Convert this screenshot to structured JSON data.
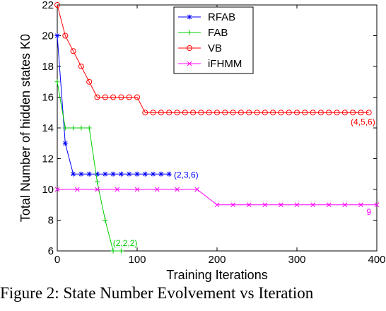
{
  "chart_data": {
    "type": "line",
    "title": "",
    "xlabel": "Training Iterations",
    "ylabel": "Total Number of hidden states K0",
    "xlim": [
      0,
      400
    ],
    "ylim": [
      6,
      22
    ],
    "xticks": [
      0,
      100,
      200,
      300,
      400
    ],
    "yticks": [
      6,
      8,
      10,
      12,
      14,
      16,
      18,
      20,
      22
    ],
    "grid": false,
    "legend_position": "top-center",
    "series": [
      {
        "name": "RFAB",
        "color": "#0000ff",
        "marker": "asterisk",
        "x": [
          0,
          10,
          20,
          30,
          40,
          50,
          60,
          70,
          80,
          90,
          100,
          110,
          120,
          130,
          140
        ],
        "y": [
          20,
          13,
          11,
          11,
          11,
          11,
          11,
          11,
          11,
          11,
          11,
          11,
          11,
          11,
          11
        ],
        "annotation": "(2,3,6)"
      },
      {
        "name": "FAB",
        "color": "#00cc00",
        "marker": "plus",
        "x": [
          0,
          10,
          20,
          30,
          40,
          50,
          60,
          70,
          80
        ],
        "y": [
          17,
          14,
          14,
          14,
          14,
          10.5,
          8,
          6,
          6
        ],
        "annotation": "(2,2,2)"
      },
      {
        "name": "VB",
        "color": "#ff0000",
        "marker": "circle",
        "x": [
          0,
          10,
          20,
          30,
          40,
          50,
          60,
          70,
          80,
          90,
          100,
          110,
          120,
          130,
          140,
          150,
          160,
          170,
          180,
          190,
          200,
          210,
          220,
          230,
          240,
          250,
          260,
          270,
          280,
          290,
          300,
          310,
          320,
          330,
          340,
          350,
          360,
          370,
          380,
          390
        ],
        "y": [
          22,
          20,
          19,
          18,
          17,
          16,
          16,
          16,
          16,
          16,
          16,
          15,
          15,
          15,
          15,
          15,
          15,
          15,
          15,
          15,
          15,
          15,
          15,
          15,
          15,
          15,
          15,
          15,
          15,
          15,
          15,
          15,
          15,
          15,
          15,
          15,
          15,
          15,
          15,
          15
        ],
        "annotation": "(4,5,6)"
      },
      {
        "name": "iFHMM",
        "color": "#ff00ff",
        "marker": "x",
        "x": [
          0,
          25,
          50,
          75,
          100,
          125,
          150,
          175,
          200,
          220,
          240,
          260,
          280,
          300,
          320,
          340,
          360,
          380,
          400
        ],
        "y": [
          10,
          10,
          10,
          10,
          10,
          10,
          10,
          10,
          9,
          9,
          9,
          9,
          9,
          9,
          9,
          9,
          9,
          9,
          9
        ],
        "annotation": "9"
      }
    ]
  },
  "caption": "Figure 2: State Number Evolvement vs Iteration"
}
